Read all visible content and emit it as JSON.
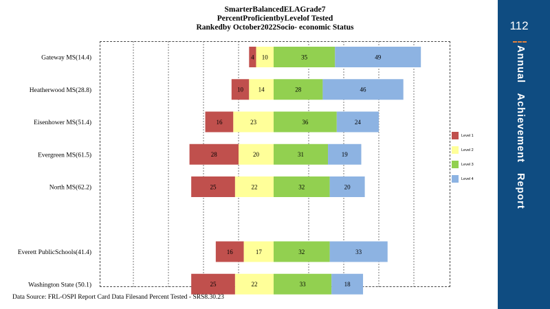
{
  "page": {
    "title_lines": [
      "SmarterBalancedELAGrade7",
      "PercentProficientbyLevelof Tested",
      "Rankedby October2022Socio- economic Status"
    ],
    "source": "Data Source: FRL-OSPI Report Card Data Filesand Percent  Tested - SRS8.30.23",
    "side_panel": {
      "page_number": "112",
      "title": "Annual   Achievement   Report",
      "color": "#0f4c81",
      "accent_color": "#e8823a"
    }
  },
  "chart_data": {
    "type": "bar",
    "orientation": "horizontal",
    "stacked": true,
    "layout": "diverging",
    "centered_between": [
      "Level 2",
      "Level 3"
    ],
    "categories": [
      "Gateway MS(14.4)",
      "Heatherwood  MS(28.8)",
      "Eisenhower MS(51.4)",
      "Evergreen MS(61.5)",
      "North MS(62.2)",
      "",
      "Everett  PublicSchools(41.4)",
      "Washington State  (50.1)"
    ],
    "series": [
      {
        "name": "Level 1",
        "color": "#c0504d",
        "values": [
          4,
          10,
          16,
          28,
          25,
          null,
          16,
          25
        ]
      },
      {
        "name": "Level 2",
        "color": "#ffff99",
        "values": [
          10,
          14,
          23,
          20,
          22,
          null,
          17,
          22
        ]
      },
      {
        "name": "Level 3",
        "color": "#92d050",
        "values": [
          35,
          28,
          36,
          31,
          32,
          null,
          32,
          33
        ]
      },
      {
        "name": "Level 4",
        "color": "#8db3e2",
        "values": [
          49,
          46,
          24,
          19,
          20,
          null,
          33,
          18
        ]
      }
    ],
    "xlim": [
      -100,
      100
    ],
    "gridlines_x": [
      -80,
      -60,
      -40,
      -20,
      20,
      40,
      60,
      80
    ],
    "grid": true,
    "legend_position": "right"
  }
}
